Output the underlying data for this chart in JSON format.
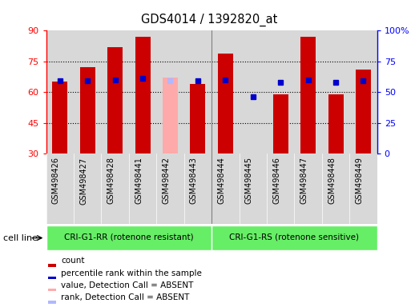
{
  "title": "GDS4014 / 1392820_at",
  "samples": [
    "GSM498426",
    "GSM498427",
    "GSM498428",
    "GSM498441",
    "GSM498442",
    "GSM498443",
    "GSM498444",
    "GSM498445",
    "GSM498446",
    "GSM498447",
    "GSM498448",
    "GSM498449"
  ],
  "count_values": [
    65,
    72,
    82,
    87,
    67,
    64,
    79,
    30,
    59,
    87,
    59,
    71
  ],
  "rank_values": [
    59,
    59,
    60,
    61,
    59,
    59,
    60,
    46,
    58,
    60,
    58,
    59
  ],
  "absent_mask": [
    false,
    false,
    false,
    false,
    true,
    false,
    false,
    false,
    false,
    false,
    false,
    false
  ],
  "group1_label": "CRI-G1-RR (rotenone resistant)",
  "group2_label": "CRI-G1-RS (rotenone sensitive)",
  "group1_count": 6,
  "group_label": "cell line",
  "ylim_left": [
    30,
    90
  ],
  "ylim_right": [
    0,
    100
  ],
  "yticks_left": [
    30,
    45,
    60,
    75,
    90
  ],
  "yticks_right": [
    0,
    25,
    50,
    75,
    100
  ],
  "bar_color": "#cc0000",
  "bar_color_absent": "#ffaaaa",
  "rank_color": "#0000cc",
  "rank_color_absent": "#b0b8ff",
  "xtick_bg": "#d0d0d0",
  "group1_color": "#66ee66",
  "group2_color": "#66ee66",
  "legend_items": [
    {
      "label": "count",
      "color": "#cc0000"
    },
    {
      "label": "percentile rank within the sample",
      "color": "#0000cc"
    },
    {
      "label": "value, Detection Call = ABSENT",
      "color": "#ffaaaa"
    },
    {
      "label": "rank, Detection Call = ABSENT",
      "color": "#b0b8ff"
    }
  ]
}
